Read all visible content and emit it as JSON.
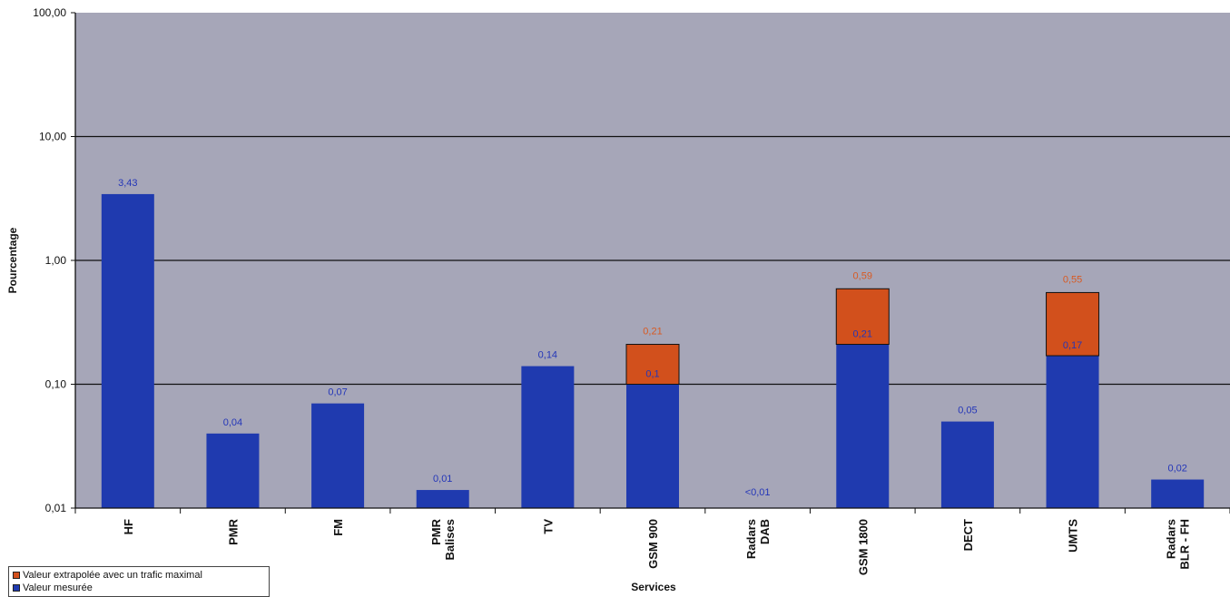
{
  "chart_data": {
    "type": "bar",
    "stacked": true,
    "scale": "log",
    "ylim": [
      0.01,
      100
    ],
    "yticks": [
      "0,01",
      "0,10",
      "1,00",
      "10,00",
      "100,00"
    ],
    "ylabel": "Pourcentage",
    "xlabel": "Services",
    "grid": true,
    "legend_placement": "bottom-left",
    "categories": [
      [
        "HF"
      ],
      [
        "PMR"
      ],
      [
        "FM"
      ],
      [
        "PMR",
        "Balises"
      ],
      [
        "TV"
      ],
      [
        "GSM 900"
      ],
      [
        "Radars",
        "DAB"
      ],
      [
        "GSM 1800"
      ],
      [
        "DECT"
      ],
      [
        "UMTS"
      ],
      [
        "Radars",
        "BLR - FH"
      ]
    ],
    "series": [
      {
        "name": "Valeur mesurée",
        "color": "#1f3aaf",
        "values": [
          3.43,
          0.04,
          0.07,
          0.014,
          0.14,
          0.1,
          null,
          0.21,
          0.05,
          0.17,
          0.017
        ],
        "labels": [
          "3,43",
          "0,04",
          "0,07",
          "0,01",
          "0,14",
          "0,1",
          "<0,01",
          "0,21",
          "0,05",
          "0,17",
          "0,02"
        ],
        "label_color": "#2436b8"
      },
      {
        "name": "Valeur extrapolée avec un trafic maximal",
        "color": "#d2501c",
        "values": [
          null,
          null,
          null,
          null,
          null,
          0.21,
          null,
          0.59,
          null,
          0.55,
          null
        ],
        "labels": [
          null,
          null,
          null,
          null,
          null,
          "0,21",
          null,
          "0,59",
          null,
          "0,55",
          null
        ],
        "label_color": "#d85a22"
      }
    ],
    "plot_background": "#a6a6b8"
  }
}
